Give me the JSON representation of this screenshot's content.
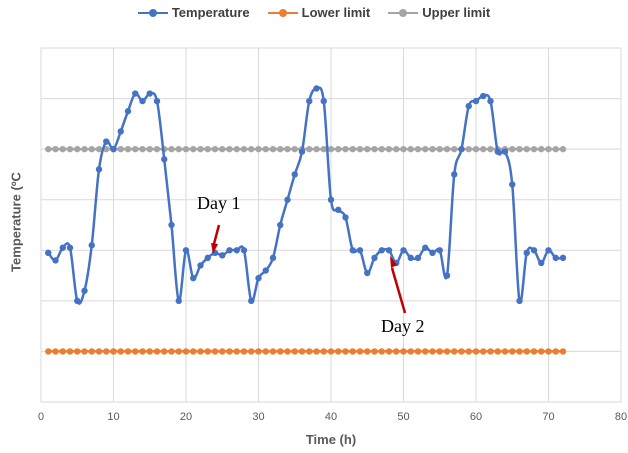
{
  "chart_data": {
    "type": "line",
    "xlabel": "Time (h)",
    "ylabel": "Temperature (ºC",
    "xlim": [
      0,
      80
    ],
    "xticks": [
      0,
      10,
      20,
      30,
      40,
      50,
      60,
      70,
      80
    ],
    "ylim": [
      0,
      7
    ],
    "y_gridlines": 7,
    "y_tick_labels_shown": false,
    "grid": true,
    "legend_position": "top",
    "series": [
      {
        "name": "Temperature",
        "color": "#4472C4",
        "marker": "circle",
        "smooth": true,
        "x": [
          1,
          2,
          3,
          4,
          5,
          6,
          7,
          8,
          9,
          10,
          11,
          12,
          13,
          14,
          15,
          16,
          17,
          18,
          19,
          20,
          21,
          22,
          23,
          24,
          25,
          26,
          27,
          28,
          29,
          30,
          31,
          32,
          33,
          34,
          35,
          36,
          37,
          38,
          39,
          40,
          41,
          42,
          43,
          44,
          45,
          46,
          47,
          48,
          49,
          50,
          51,
          52,
          53,
          54,
          55,
          56,
          57,
          58,
          59,
          60,
          61,
          62,
          63,
          64,
          65,
          66,
          67,
          68,
          69,
          70,
          71,
          72
        ],
        "y": [
          2.95,
          2.8,
          3.05,
          3.05,
          2.0,
          2.2,
          3.1,
          4.6,
          5.15,
          5.0,
          5.35,
          5.75,
          6.1,
          5.95,
          6.1,
          5.95,
          4.8,
          3.5,
          2.0,
          3.0,
          2.45,
          2.7,
          2.85,
          2.95,
          2.9,
          3.0,
          3.0,
          3.0,
          2.0,
          2.45,
          2.6,
          2.85,
          3.5,
          4.0,
          4.5,
          4.95,
          5.95,
          6.2,
          5.95,
          4.0,
          3.8,
          3.65,
          3.0,
          3.0,
          2.55,
          2.85,
          3.0,
          3.0,
          2.75,
          3.0,
          2.85,
          2.85,
          3.05,
          2.95,
          3.0,
          2.5,
          4.5,
          5.0,
          5.85,
          5.95,
          6.05,
          5.95,
          4.95,
          4.95,
          4.3,
          2.0,
          2.95,
          3.0,
          2.75,
          3.0,
          2.85,
          2.85
        ]
      },
      {
        "name": "Lower limit",
        "color": "#ED7D31",
        "marker": "circle",
        "x_range": [
          1,
          72
        ],
        "y_constant": 1.0
      },
      {
        "name": "Upper limit",
        "color": "#A5A5A5",
        "marker": "circle",
        "x_range": [
          1,
          72
        ],
        "y_constant": 5.0
      }
    ],
    "annotations": [
      {
        "text": "Day 1",
        "arrow_to_x": 24,
        "arrow_to_y": 2.95
      },
      {
        "text": "Day 2",
        "arrow_to_x": 48,
        "arrow_to_y": 2.85
      }
    ]
  }
}
